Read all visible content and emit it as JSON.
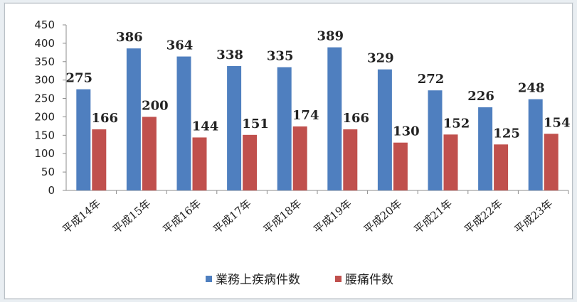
{
  "chart_data": {
    "type": "bar",
    "categories": [
      "平成14年",
      "平成15年",
      "平成16年",
      "平成17年",
      "平成18年",
      "平成19年",
      "平成20年",
      "平成21年",
      "平成22年",
      "平成23年"
    ],
    "series": [
      {
        "name": "業務上疾病件数",
        "values": [
          275,
          386,
          364,
          338,
          335,
          389,
          329,
          272,
          226,
          248
        ],
        "color": "#4f7fbf"
      },
      {
        "name": "腰痛件数",
        "values": [
          166,
          200,
          144,
          151,
          174,
          166,
          130,
          152,
          125,
          154
        ],
        "color": "#c0504d"
      }
    ],
    "ylim": [
      0,
      450
    ],
    "yticks": [
      0,
      50,
      100,
      150,
      200,
      250,
      300,
      350,
      400,
      450
    ],
    "grid": false,
    "legend_position": "bottom",
    "data_labels": true
  }
}
